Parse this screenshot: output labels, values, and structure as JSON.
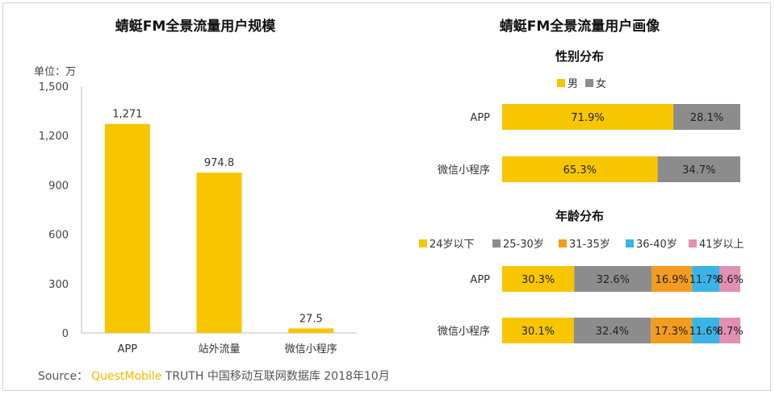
{
  "colors": {
    "yellow": "#f7c600",
    "gray": "#8c8c8c",
    "orange": "#f39c1f",
    "blue": "#3bb4e5",
    "pink": "#e38fb3"
  },
  "chart_data": [
    {
      "type": "bar",
      "title": "蜻蜓FM全景流量用户规模",
      "ylabel": "单位：万",
      "categories": [
        "APP",
        "站外流量",
        "微信小程序"
      ],
      "values": [
        1271,
        974.8,
        27.5
      ],
      "value_labels": [
        "1,271",
        "974.8",
        "27.5"
      ],
      "ylim": [
        0,
        1500
      ],
      "yticks": [
        0,
        300,
        600,
        900,
        1200,
        1500
      ],
      "ytick_labels": [
        "0",
        "300",
        "600",
        "900",
        "1,200",
        "1,500"
      ],
      "grid": false
    },
    {
      "type": "bar",
      "orientation": "horizontal",
      "stacked": "percent",
      "title": "蜻蜓FM全景流量用户画像",
      "subtitle": "性别分布",
      "categories": [
        "APP",
        "微信小程序"
      ],
      "legend_position": "top",
      "series": [
        {
          "name": "男",
          "color": "#f7c600",
          "values": [
            71.9,
            65.3
          ],
          "labels": [
            "71.9%",
            "65.3%"
          ]
        },
        {
          "name": "女",
          "color": "#8c8c8c",
          "values": [
            28.1,
            34.7
          ],
          "labels": [
            "28.1%",
            "34.7%"
          ]
        }
      ]
    },
    {
      "type": "bar",
      "orientation": "horizontal",
      "stacked": "percent",
      "subtitle": "年龄分布",
      "categories": [
        "APP",
        "微信小程序"
      ],
      "legend_position": "top",
      "series": [
        {
          "name": "24岁以下",
          "color": "#f7c600",
          "values": [
            30.3,
            30.1
          ],
          "labels": [
            "30.3%",
            "30.1%"
          ]
        },
        {
          "name": "25-30岁",
          "color": "#8c8c8c",
          "values": [
            32.6,
            32.4
          ],
          "labels": [
            "32.6%",
            "32.4%"
          ]
        },
        {
          "name": "31-35岁",
          "color": "#f39c1f",
          "values": [
            16.9,
            17.3
          ],
          "labels": [
            "16.9%",
            "17.3%"
          ]
        },
        {
          "name": "36-40岁",
          "color": "#3bb4e5",
          "values": [
            11.7,
            11.6
          ],
          "labels": [
            "11.7%",
            "11.6%"
          ]
        },
        {
          "name": "41岁以上",
          "color": "#e38fb3",
          "values": [
            8.6,
            8.7
          ],
          "labels": [
            "8.6%",
            "8.7%"
          ]
        }
      ]
    }
  ],
  "source": {
    "prefix": "Source：",
    "brand": "QuestMobile",
    "text": "TRUTH 中国移动互联网数据库 2018年10月"
  }
}
